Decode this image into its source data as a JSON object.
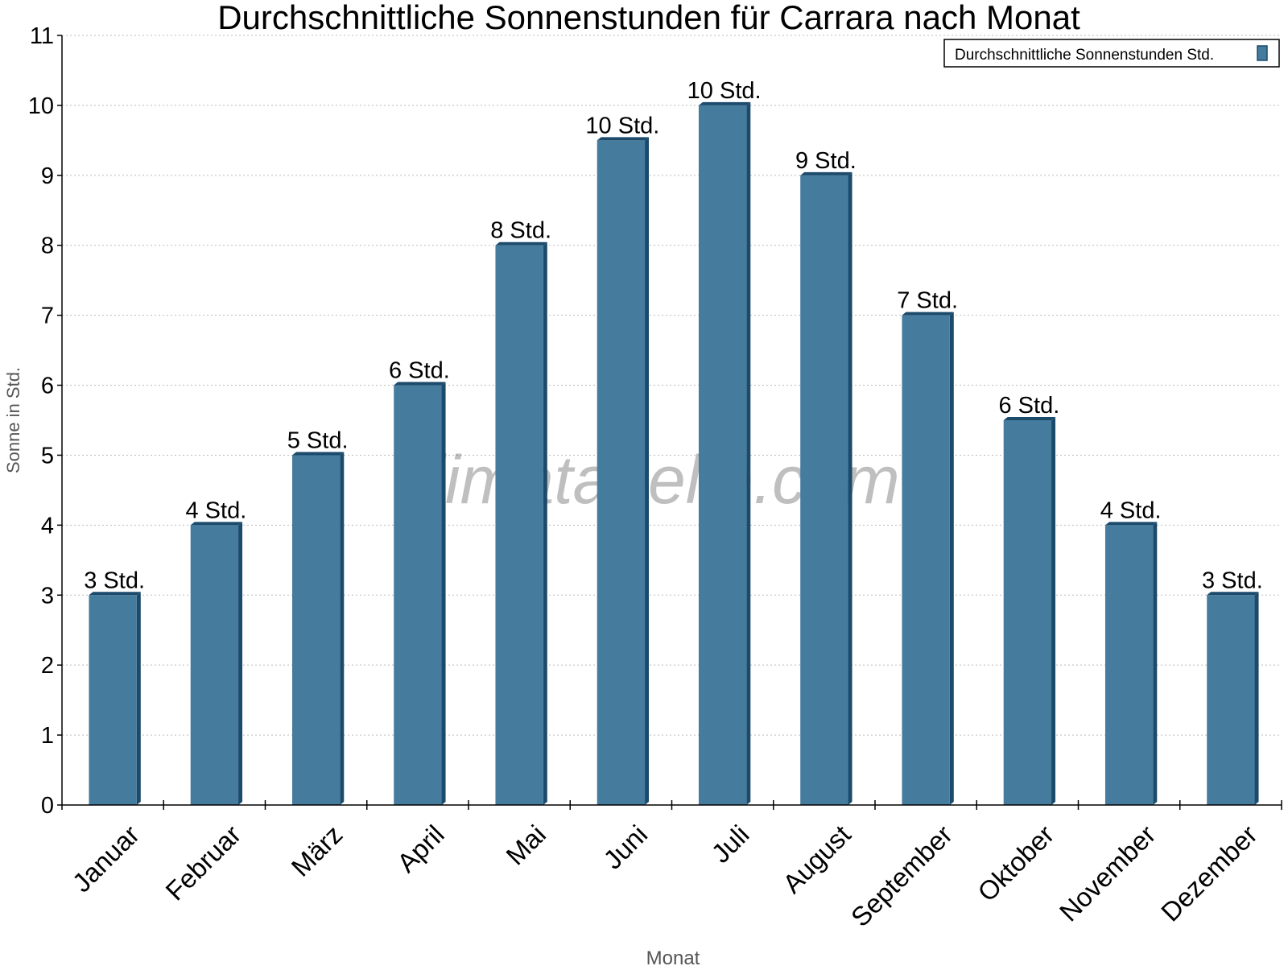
{
  "chart_data": {
    "type": "bar",
    "title": "Durchschnittliche Sonnenstunden für Carrara nach Monat",
    "xlabel": "Monat",
    "ylabel": "Sonne in Std.",
    "ylim": [
      0,
      11
    ],
    "yticks": [
      "0",
      "1",
      "2",
      "3",
      "4",
      "5",
      "6",
      "7",
      "8",
      "9",
      "10",
      "11"
    ],
    "grid": true,
    "legend_position": "top-right",
    "watermark": "klimatabelle.com",
    "categories": [
      "Januar",
      "Februar",
      "März",
      "April",
      "Mai",
      "Juni",
      "Juli",
      "August",
      "September",
      "Oktober",
      "November",
      "Dezember"
    ],
    "series": [
      {
        "name": "Durchschnittliche Sonnenstunden Std.",
        "color": "#457b9d",
        "side_color": "#1b4a6b",
        "values": [
          3,
          4,
          5,
          6,
          8,
          9.5,
          10,
          9,
          7,
          5.5,
          4,
          3
        ],
        "labels": [
          "3 Std.",
          "4 Std.",
          "5 Std.",
          "6 Std.",
          "8 Std.",
          "10 Std.",
          "10 Std.",
          "9 Std.",
          "7 Std.",
          "6 Std.",
          "4 Std.",
          "3 Std."
        ]
      }
    ]
  }
}
